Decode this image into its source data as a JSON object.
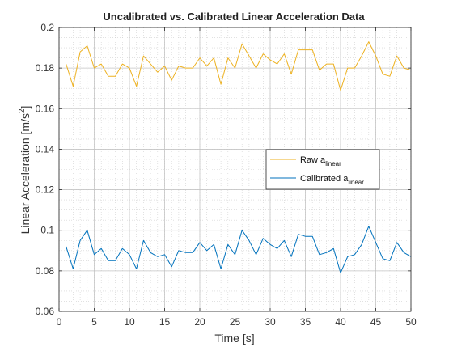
{
  "chart_data": {
    "type": "line",
    "title": "Uncalibrated vs. Calibrated Linear Acceleration Data",
    "xlabel": "Time [s]",
    "ylabel_prefix": "Linear Acceleration [m/s",
    "ylabel_sup": "2",
    "ylabel_suffix": "]",
    "xlim": [
      0,
      50
    ],
    "ylim": [
      0.06,
      0.2
    ],
    "xticks": [
      0,
      5,
      10,
      15,
      20,
      25,
      30,
      35,
      40,
      45,
      50
    ],
    "yticks": [
      0.06,
      0.08,
      0.1,
      0.12,
      0.14,
      0.16,
      0.18,
      0.2
    ],
    "xtick_labels": [
      "0",
      "5",
      "10",
      "15",
      "20",
      "25",
      "30",
      "35",
      "40",
      "45",
      "50"
    ],
    "ytick_labels": [
      "0.06",
      "0.08",
      "0.1",
      "0.12",
      "0.14",
      "0.16",
      "0.18",
      "0.2"
    ],
    "grid": true,
    "minor_grid": true,
    "legend_position": "right-middle",
    "x": [
      1,
      2,
      3,
      4,
      5,
      6,
      7,
      8,
      9,
      10,
      11,
      12,
      13,
      14,
      15,
      16,
      17,
      18,
      19,
      20,
      21,
      22,
      23,
      24,
      25,
      26,
      27,
      28,
      29,
      30,
      31,
      32,
      33,
      34,
      35,
      36,
      37,
      38,
      39,
      40,
      41,
      42,
      43,
      44,
      45,
      46,
      47,
      48,
      49,
      50
    ],
    "series": [
      {
        "name": "Raw a",
        "name_sub": "linear",
        "color": "#EDB120",
        "values": [
          0.182,
          0.171,
          0.188,
          0.191,
          0.18,
          0.182,
          0.176,
          0.176,
          0.182,
          0.18,
          0.171,
          0.186,
          0.182,
          0.178,
          0.181,
          0.174,
          0.181,
          0.18,
          0.18,
          0.185,
          0.181,
          0.185,
          0.172,
          0.185,
          0.18,
          0.192,
          0.186,
          0.18,
          0.187,
          0.184,
          0.182,
          0.187,
          0.177,
          0.189,
          0.189,
          0.189,
          0.179,
          0.182,
          0.182,
          0.169,
          0.18,
          0.18,
          0.186,
          0.193,
          0.186,
          0.177,
          0.176,
          0.186,
          0.18,
          0.179
        ]
      },
      {
        "name": "Calibrated a",
        "name_sub": "linear",
        "color": "#0072BD",
        "values": [
          0.092,
          0.081,
          0.095,
          0.1,
          0.088,
          0.091,
          0.085,
          0.085,
          0.091,
          0.088,
          0.081,
          0.095,
          0.089,
          0.087,
          0.088,
          0.082,
          0.09,
          0.089,
          0.089,
          0.094,
          0.09,
          0.093,
          0.081,
          0.093,
          0.088,
          0.1,
          0.095,
          0.088,
          0.096,
          0.093,
          0.091,
          0.095,
          0.087,
          0.098,
          0.097,
          0.097,
          0.088,
          0.089,
          0.091,
          0.079,
          0.087,
          0.088,
          0.093,
          0.102,
          0.094,
          0.086,
          0.085,
          0.094,
          0.089,
          0.087
        ]
      }
    ]
  }
}
